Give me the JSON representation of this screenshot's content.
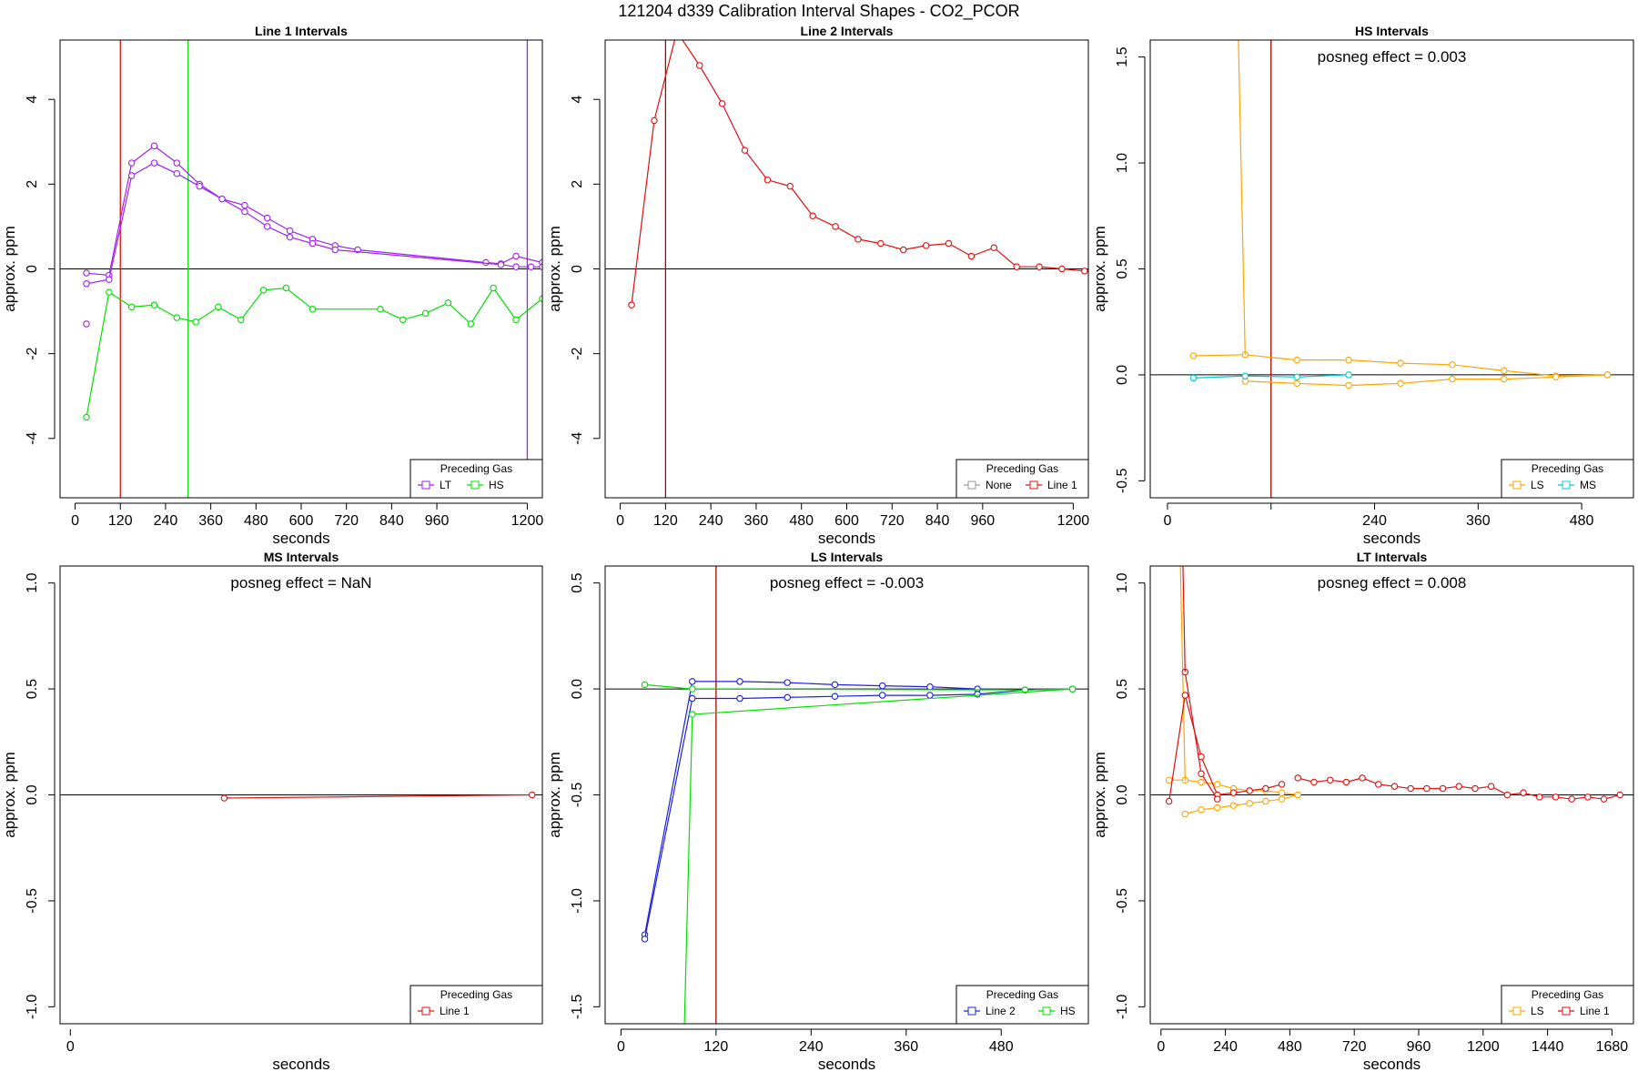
{
  "title": "121204  d339   Calibration Interval Shapes - CO2_PCOR",
  "colors": {
    "purple": "#a020f0",
    "green": "#00e000",
    "red": "#e01010",
    "darkred": "#b00000",
    "orange": "#ffa500",
    "cyan": "#00c8d0",
    "blue": "#2020e0",
    "gray": "#999999",
    "black": "#000000"
  },
  "chart_data": [
    {
      "id": "line1",
      "type": "line",
      "title": "Line 1 Intervals",
      "xlabel": "seconds",
      "ylabel": "approx. ppm",
      "xlim": [
        -40,
        1240
      ],
      "ylim": [
        -5.4,
        5.4
      ],
      "xticks": [
        0,
        120,
        240,
        360,
        480,
        600,
        720,
        840,
        960,
        1200
      ],
      "xtick_labels": [
        "0",
        "120",
        "240",
        "360",
        "480",
        "600",
        "720",
        "840",
        "960",
        "1200"
      ],
      "yticks": [
        -4,
        -2,
        0,
        2,
        4
      ],
      "ytick_labels": [
        "-4",
        "-2",
        "0",
        "2",
        "4"
      ],
      "vlines": [
        {
          "x": 120,
          "color": "red"
        },
        {
          "x": 300,
          "color": "green"
        },
        {
          "x": 1200,
          "color": "purple"
        }
      ],
      "annotation": "",
      "legend": {
        "title": "Preceding Gas",
        "entries": [
          {
            "label": "LT",
            "color": "purple"
          },
          {
            "label": "HS",
            "color": "green"
          }
        ]
      },
      "series": [
        {
          "name": "LT",
          "color": "purple",
          "x": [
            30,
            90,
            150,
            210,
            270,
            330,
            390,
            450,
            510,
            570,
            630,
            690,
            750,
            1090,
            1130,
            1170,
            1240
          ],
          "y": [
            -0.1,
            -0.15,
            2.5,
            2.9,
            2.5,
            2.0,
            1.65,
            1.5,
            1.2,
            0.9,
            0.7,
            0.55,
            0.45,
            0.15,
            0.12,
            0.3,
            0.15
          ]
        },
        {
          "name": "LT",
          "color": "purple",
          "x": [
            30,
            90,
            150,
            210,
            270,
            330,
            390,
            450,
            510,
            570,
            630,
            690,
            1130,
            1170,
            1210,
            1240
          ],
          "y": [
            -0.35,
            -0.25,
            2.2,
            2.5,
            2.25,
            1.95,
            1.65,
            1.35,
            1.0,
            0.75,
            0.6,
            0.45,
            0.1,
            0.05,
            0.05,
            0.05
          ]
        },
        {
          "name": "LT",
          "color": "purple",
          "x": [
            30
          ],
          "y": [
            -1.3
          ],
          "points_only": true
        },
        {
          "name": "HS",
          "color": "green",
          "x": [
            30,
            90,
            150,
            210,
            270,
            320,
            380,
            440,
            500,
            560,
            630,
            810,
            870,
            930,
            990,
            1050,
            1110,
            1170,
            1240
          ],
          "y": [
            -3.5,
            -0.55,
            -0.9,
            -0.85,
            -1.15,
            -1.25,
            -0.9,
            -1.2,
            -0.5,
            -0.45,
            -0.95,
            -0.95,
            -1.2,
            -1.05,
            -0.8,
            -1.3,
            -0.45,
            -1.2,
            -0.7
          ]
        }
      ]
    },
    {
      "id": "line2",
      "type": "line",
      "title": "Line 2 Intervals",
      "xlabel": "seconds",
      "ylabel": "approx. ppm",
      "xlim": [
        -40,
        1240
      ],
      "ylim": [
        -5.4,
        5.4
      ],
      "xticks": [
        0,
        120,
        240,
        360,
        480,
        600,
        720,
        840,
        960,
        1200
      ],
      "xtick_labels": [
        "0",
        "120",
        "240",
        "360",
        "480",
        "600",
        "720",
        "840",
        "960",
        "1200"
      ],
      "yticks": [
        -4,
        -2,
        0,
        2,
        4
      ],
      "ytick_labels": [
        "-4",
        "-2",
        "0",
        "2",
        "4"
      ],
      "vlines": [
        {
          "x": 120,
          "color": "darkred"
        }
      ],
      "annotation": "",
      "legend": {
        "title": "Preceding Gas",
        "entries": [
          {
            "label": "None",
            "color": "gray"
          },
          {
            "label": "Line 1",
            "color": "red"
          }
        ]
      },
      "series": [
        {
          "name": "Line 1",
          "color": "red",
          "x": [
            30,
            90,
            150,
            210,
            270,
            330,
            390,
            450,
            510,
            570,
            630,
            690,
            750,
            810,
            870,
            930,
            990,
            1050,
            1110,
            1170,
            1230
          ],
          "y": [
            -0.85,
            3.5,
            5.6,
            4.8,
            3.9,
            2.8,
            2.1,
            1.95,
            1.25,
            1.0,
            0.7,
            0.6,
            0.45,
            0.55,
            0.6,
            0.3,
            0.5,
            0.05,
            0.05,
            0.0,
            -0.05
          ]
        }
      ]
    },
    {
      "id": "hs",
      "type": "line",
      "title": "HS Intervals",
      "xlabel": "seconds",
      "ylabel": "approx. ppm",
      "xlim": [
        -20,
        540
      ],
      "ylim": [
        -0.58,
        1.58
      ],
      "xticks": [
        0,
        240,
        360,
        480
      ],
      "xtick_labels": [
        "0",
        "240",
        "360",
        "480"
      ],
      "xticks_unlabeled": [
        120
      ],
      "yticks": [
        -0.5,
        0.0,
        0.5,
        1.0,
        1.5
      ],
      "ytick_labels": [
        "-0.5",
        "0.0",
        "0.5",
        "1.0",
        "1.5"
      ],
      "vlines": [
        {
          "x": 120,
          "color": "darkred"
        }
      ],
      "annotation": "posneg effect = 0.003",
      "legend": {
        "title": "Preceding Gas",
        "entries": [
          {
            "label": "LS",
            "color": "orange"
          },
          {
            "label": "MS",
            "color": "cyan"
          }
        ]
      },
      "series": [
        {
          "name": "LS",
          "color": "orange",
          "x": [
            30,
            90,
            150,
            210,
            270,
            330,
            390,
            450,
            510
          ],
          "y": [
            0.09,
            0.095,
            0.07,
            0.07,
            0.055,
            0.048,
            0.02,
            -0.005,
            0.0
          ]
        },
        {
          "name": "LS",
          "color": "orange",
          "x": [
            90,
            150,
            210,
            270,
            330,
            390,
            450,
            510
          ],
          "y": [
            -0.03,
            -0.04,
            -0.05,
            -0.04,
            -0.02,
            -0.02,
            -0.01,
            0.0
          ]
        },
        {
          "name": "LS",
          "color": "orange",
          "x": [
            80,
            90
          ],
          "y": [
            2.0,
            0.095
          ],
          "points_only": false,
          "no_markers": true
        },
        {
          "name": "MS",
          "color": "cyan",
          "x": [
            30,
            90,
            150,
            210
          ],
          "y": [
            -0.015,
            -0.005,
            -0.01,
            0.0
          ]
        }
      ]
    },
    {
      "id": "ms",
      "type": "line",
      "title": "MS Intervals",
      "xlabel": "seconds",
      "ylabel": "approx. ppm",
      "xlim": [
        -20,
        920
      ],
      "ylim": [
        -1.08,
        1.08
      ],
      "xticks": [
        0
      ],
      "xtick_labels": [
        "0"
      ],
      "yticks": [
        -1.0,
        -0.5,
        0.0,
        0.5,
        1.0
      ],
      "ytick_labels": [
        "-1.0",
        "-0.5",
        "0.0",
        "0.5",
        "1.0"
      ],
      "vlines": [],
      "annotation": "posneg effect = NaN",
      "legend": {
        "title": "Preceding Gas",
        "entries": [
          {
            "label": "Line 1",
            "color": "red"
          }
        ]
      },
      "series": [
        {
          "name": "Line 1",
          "color": "red",
          "x": [
            300,
            900
          ],
          "y": [
            -0.015,
            0.0
          ]
        }
      ]
    },
    {
      "id": "ls",
      "type": "line",
      "title": "LS Intervals",
      "xlabel": "seconds",
      "ylabel": "approx. ppm",
      "xlim": [
        -20,
        590
      ],
      "ylim": [
        -1.58,
        0.58
      ],
      "xticks": [
        0,
        120,
        240,
        360,
        480
      ],
      "xtick_labels": [
        "0",
        "120",
        "240",
        "360",
        "480"
      ],
      "yticks": [
        -1.5,
        -1.0,
        -0.5,
        0.0,
        0.5
      ],
      "ytick_labels": [
        "-1.5",
        "-1.0",
        "-0.5",
        "0.0",
        "0.5"
      ],
      "vlines": [
        {
          "x": 120,
          "color": "darkred"
        }
      ],
      "annotation": "posneg effect = -0.003",
      "legend": {
        "title": "Preceding Gas",
        "entries": [
          {
            "label": "Line 2",
            "color": "blue"
          },
          {
            "label": "HS",
            "color": "green"
          }
        ]
      },
      "series": [
        {
          "name": "Line 2",
          "color": "blue",
          "x": [
            30,
            90,
            150,
            210,
            270,
            330,
            390,
            450,
            510,
            570
          ],
          "y": [
            -1.16,
            0.035,
            0.035,
            0.03,
            0.02,
            0.015,
            0.01,
            0.0,
            -0.005,
            0.0
          ]
        },
        {
          "name": "Line 2",
          "color": "blue",
          "x": [
            30,
            90,
            150,
            210,
            270,
            330,
            390,
            450,
            510,
            570
          ],
          "y": [
            -1.18,
            -0.045,
            -0.045,
            -0.04,
            -0.035,
            -0.03,
            -0.03,
            -0.025,
            -0.005,
            0.0
          ]
        },
        {
          "name": "HS",
          "color": "green",
          "x": [
            30,
            90,
            510,
            570
          ],
          "y": [
            0.02,
            0.0,
            -0.005,
            0.0
          ]
        },
        {
          "name": "HS",
          "color": "green",
          "x": [
            80,
            90,
            570
          ],
          "y": [
            -1.6,
            -0.12,
            0.0
          ],
          "markers_from": 1
        }
      ]
    },
    {
      "id": "lt",
      "type": "line",
      "title": "LT Intervals",
      "xlabel": "seconds",
      "ylabel": "approx. ppm",
      "xlim": [
        -40,
        1760
      ],
      "ylim": [
        -1.08,
        1.08
      ],
      "xticks": [
        0,
        240,
        480,
        720,
        960,
        1200,
        1440,
        1680
      ],
      "xtick_labels": [
        "0",
        "240",
        "480",
        "720",
        "960",
        "1200",
        "1440",
        "1680"
      ],
      "yticks": [
        -1.0,
        -0.5,
        0.0,
        0.5,
        1.0
      ],
      "ytick_labels": [
        "-1.0",
        "-0.5",
        "0.0",
        "0.5",
        "1.0"
      ],
      "vlines": [],
      "annotation": "posneg effect = 0.008",
      "legend": {
        "title": "Preceding Gas",
        "entries": [
          {
            "label": "LS",
            "color": "orange"
          },
          {
            "label": "Line 1",
            "color": "red"
          }
        ]
      },
      "series": [
        {
          "name": "LS",
          "color": "orange",
          "x": [
            30,
            90,
            150,
            210,
            270,
            330,
            390,
            450,
            510
          ],
          "y": [
            0.07,
            0.07,
            0.06,
            0.05,
            0.03,
            0.02,
            0.02,
            0.01,
            0.0
          ]
        },
        {
          "name": "LS",
          "color": "orange",
          "x": [
            90,
            150,
            210,
            270,
            330,
            390,
            450,
            510
          ],
          "y": [
            -0.09,
            -0.07,
            -0.06,
            -0.05,
            -0.04,
            -0.03,
            -0.02,
            0.0
          ]
        },
        {
          "name": "LS",
          "color": "orange",
          "x": [
            70,
            90
          ],
          "y": [
            1.2,
            0.07
          ],
          "no_markers": true
        },
        {
          "name": "Line 1",
          "color": "red",
          "x": [
            30,
            90,
            150,
            210,
            270,
            330,
            390,
            450
          ],
          "y": [
            -0.03,
            0.47,
            0.18,
            0.0,
            0.01,
            0.02,
            0.03,
            0.05
          ]
        },
        {
          "name": "Line 1",
          "color": "red",
          "x": [
            90,
            150,
            210
          ],
          "y": [
            0.58,
            0.1,
            -0.02
          ]
        },
        {
          "name": "Line 1",
          "color": "red",
          "x": [
            80,
            90
          ],
          "y": [
            1.2,
            0.58
          ],
          "no_markers": true
        },
        {
          "name": "Line 1",
          "color": "red",
          "x": [
            510,
            570,
            630,
            690,
            750,
            810,
            870,
            930,
            990,
            1050,
            1110,
            1170,
            1230,
            1290,
            1350,
            1410,
            1470,
            1530,
            1590,
            1650,
            1710
          ],
          "y": [
            0.08,
            0.06,
            0.07,
            0.06,
            0.08,
            0.05,
            0.04,
            0.03,
            0.03,
            0.03,
            0.04,
            0.03,
            0.04,
            0.0,
            0.01,
            -0.01,
            -0.01,
            -0.02,
            -0.01,
            -0.02,
            0.0
          ],
          "dashed": true
        }
      ]
    }
  ]
}
